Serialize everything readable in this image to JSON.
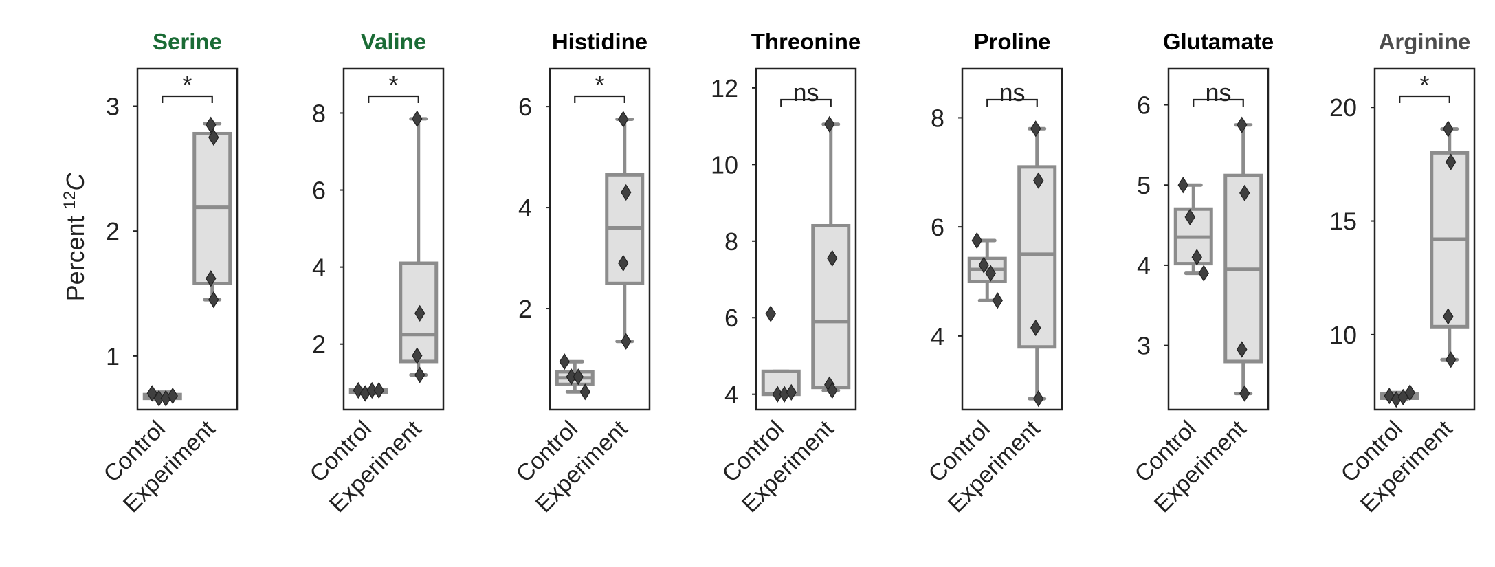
{
  "ylabel_text": "Percent ",
  "ylabel_sup": "12",
  "ylabel_var": "C",
  "colors": {
    "box_fill": "#e0e0e0",
    "box_edge": "#8c8c8c",
    "marker": "#404040",
    "frame": "#222222",
    "green": "#1a6b35",
    "black": "#000000",
    "gray": "#4d4d4d"
  },
  "chart_data": [
    {
      "type": "box",
      "title": "Serine",
      "title_color": "#1a6b35",
      "categories": [
        "Control",
        "Experiment"
      ],
      "ylim": [
        0.57,
        3.3
      ],
      "yticks": [
        1,
        2,
        3
      ],
      "significance": "*",
      "groups": [
        {
          "name": "Control",
          "points": [
            0.7,
            0.66,
            0.66,
            0.68
          ],
          "q1": 0.66,
          "median": 0.67,
          "q3": 0.69,
          "whisker_low": 0.65,
          "whisker_high": 0.71
        },
        {
          "name": "Experiment",
          "points": [
            2.85,
            2.75,
            1.62,
            1.45
          ],
          "q1": 1.58,
          "median": 2.19,
          "q3": 2.78,
          "whisker_low": 1.45,
          "whisker_high": 2.86
        }
      ]
    },
    {
      "type": "box",
      "title": "Valine",
      "title_color": "#1a6b35",
      "categories": [
        "Control",
        "Experiment"
      ],
      "ylim": [
        0.3,
        9.15
      ],
      "yticks": [
        2,
        4,
        6,
        8
      ],
      "significance": "*",
      "groups": [
        {
          "name": "Control",
          "points": [
            0.8,
            0.72,
            0.8,
            0.8
          ],
          "q1": 0.74,
          "median": 0.8,
          "q3": 0.81,
          "whisker_low": 0.72,
          "whisker_high": 0.83
        },
        {
          "name": "Experiment",
          "points": [
            7.85,
            2.8,
            1.7,
            1.2
          ],
          "q1": 1.55,
          "median": 2.25,
          "q3": 4.1,
          "whisker_low": 1.2,
          "whisker_high": 7.85
        }
      ]
    },
    {
      "type": "box",
      "title": "Histidine",
      "title_color": "#000000",
      "categories": [
        "Control",
        "Experiment"
      ],
      "ylim": [
        0.0,
        6.75
      ],
      "yticks": [
        2,
        4,
        6
      ],
      "significance": "*",
      "groups": [
        {
          "name": "Control",
          "points": [
            0.95,
            0.65,
            0.65,
            0.35
          ],
          "q1": 0.5,
          "median": 0.63,
          "q3": 0.75,
          "whisker_low": 0.35,
          "whisker_high": 0.95
        },
        {
          "name": "Experiment",
          "points": [
            5.75,
            4.3,
            2.9,
            1.35
          ],
          "q1": 2.5,
          "median": 3.6,
          "q3": 4.65,
          "whisker_low": 1.35,
          "whisker_high": 5.75
        }
      ]
    },
    {
      "type": "box",
      "title": "Threonine",
      "title_color": "#000000",
      "categories": [
        "Control",
        "Experiment"
      ],
      "ylim": [
        3.6,
        12.5
      ],
      "yticks": [
        4,
        6,
        8,
        10,
        12
      ],
      "significance": "ns",
      "groups": [
        {
          "name": "Control",
          "points": [
            6.1,
            4.0,
            4.0,
            4.05
          ],
          "q1": 4.0,
          "median": 4.02,
          "q3": 4.6,
          "whisker_low": 4.0,
          "whisker_high": 4.6
        },
        {
          "name": "Experiment",
          "points": [
            11.05,
            7.55,
            4.25,
            4.1
          ],
          "q1": 4.18,
          "median": 5.9,
          "q3": 8.4,
          "whisker_low": 4.1,
          "whisker_high": 11.05
        }
      ]
    },
    {
      "type": "box",
      "title": "Proline",
      "title_color": "#000000",
      "categories": [
        "Control",
        "Experiment"
      ],
      "ylim": [
        2.65,
        8.9
      ],
      "yticks": [
        4,
        6,
        8
      ],
      "significance": "ns",
      "groups": [
        {
          "name": "Control",
          "points": [
            5.75,
            5.3,
            5.15,
            4.65
          ],
          "q1": 5.0,
          "median": 5.22,
          "q3": 5.42,
          "whisker_low": 4.65,
          "whisker_high": 5.75
        },
        {
          "name": "Experiment",
          "points": [
            7.8,
            6.85,
            4.15,
            2.85
          ],
          "q1": 3.8,
          "median": 5.5,
          "q3": 7.1,
          "whisker_low": 2.85,
          "whisker_high": 7.8
        }
      ]
    },
    {
      "type": "box",
      "title": "Glutamate",
      "title_color": "#000000",
      "categories": [
        "Control",
        "Experiment"
      ],
      "ylim": [
        2.2,
        6.45
      ],
      "yticks": [
        3,
        4,
        5,
        6
      ],
      "significance": "ns",
      "groups": [
        {
          "name": "Control",
          "points": [
            5.0,
            4.6,
            4.1,
            3.9
          ],
          "q1": 4.02,
          "median": 4.35,
          "q3": 4.7,
          "whisker_low": 3.9,
          "whisker_high": 5.0
        },
        {
          "name": "Experiment",
          "points": [
            5.75,
            4.9,
            2.95,
            2.4
          ],
          "q1": 2.8,
          "median": 3.95,
          "q3": 5.12,
          "whisker_low": 2.4,
          "whisker_high": 5.75
        }
      ]
    },
    {
      "type": "box",
      "title": "Arginine",
      "title_color": "#4d4d4d",
      "categories": [
        "Control",
        "Experiment"
      ],
      "ylim": [
        6.7,
        21.7
      ],
      "yticks": [
        10,
        15,
        20
      ],
      "significance": "*",
      "groups": [
        {
          "name": "Control",
          "points": [
            7.3,
            7.15,
            7.25,
            7.45
          ],
          "q1": 7.2,
          "median": 7.3,
          "q3": 7.38,
          "whisker_low": 7.15,
          "whisker_high": 7.45
        },
        {
          "name": "Experiment",
          "points": [
            19.05,
            17.6,
            10.8,
            8.9
          ],
          "q1": 10.35,
          "median": 14.2,
          "q3": 18.0,
          "whisker_low": 8.9,
          "whisker_high": 19.05
        }
      ]
    }
  ]
}
